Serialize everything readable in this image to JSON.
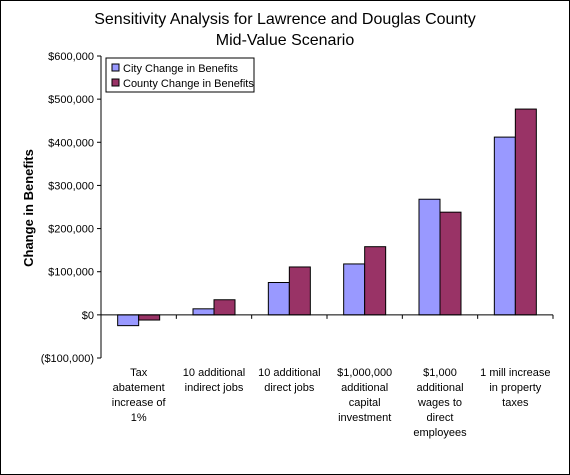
{
  "chart_data": {
    "type": "bar",
    "title": "Sensitivity Analysis for Lawrence and Douglas County",
    "subtitle": "Mid-Value Scenario",
    "xlabel": "",
    "ylabel": "Change in Benefits",
    "ylim": [
      -100000,
      600000
    ],
    "yticks": [
      600000,
      500000,
      400000,
      300000,
      200000,
      100000,
      0,
      -100000
    ],
    "ytick_labels": [
      "$600,000",
      "$500,000",
      "$400,000",
      "$300,000",
      "$200,000",
      "$100,000",
      "$0",
      "($100,000)"
    ],
    "categories": [
      [
        "Tax",
        "abatement",
        "increase of",
        "1%"
      ],
      [
        "10 additional",
        "indirect jobs"
      ],
      [
        "10 additional",
        "direct jobs"
      ],
      [
        "$1,000,000",
        "additional",
        "capital",
        "investment"
      ],
      [
        "$1,000",
        "additional",
        "wages to",
        "direct",
        "employees"
      ],
      [
        "1 mill increase",
        "in property",
        "taxes"
      ]
    ],
    "series": [
      {
        "name": "City Change in Benefits",
        "color": "#9999ff",
        "values": [
          -25000,
          14000,
          75000,
          118000,
          268000,
          412000
        ]
      },
      {
        "name": "County Change in Benefits",
        "color": "#993366",
        "values": [
          -12000,
          35000,
          111000,
          158000,
          238000,
          477000
        ]
      }
    ],
    "legend": "top-left",
    "grid": false,
    "negative_label_color": "#cc0000"
  }
}
